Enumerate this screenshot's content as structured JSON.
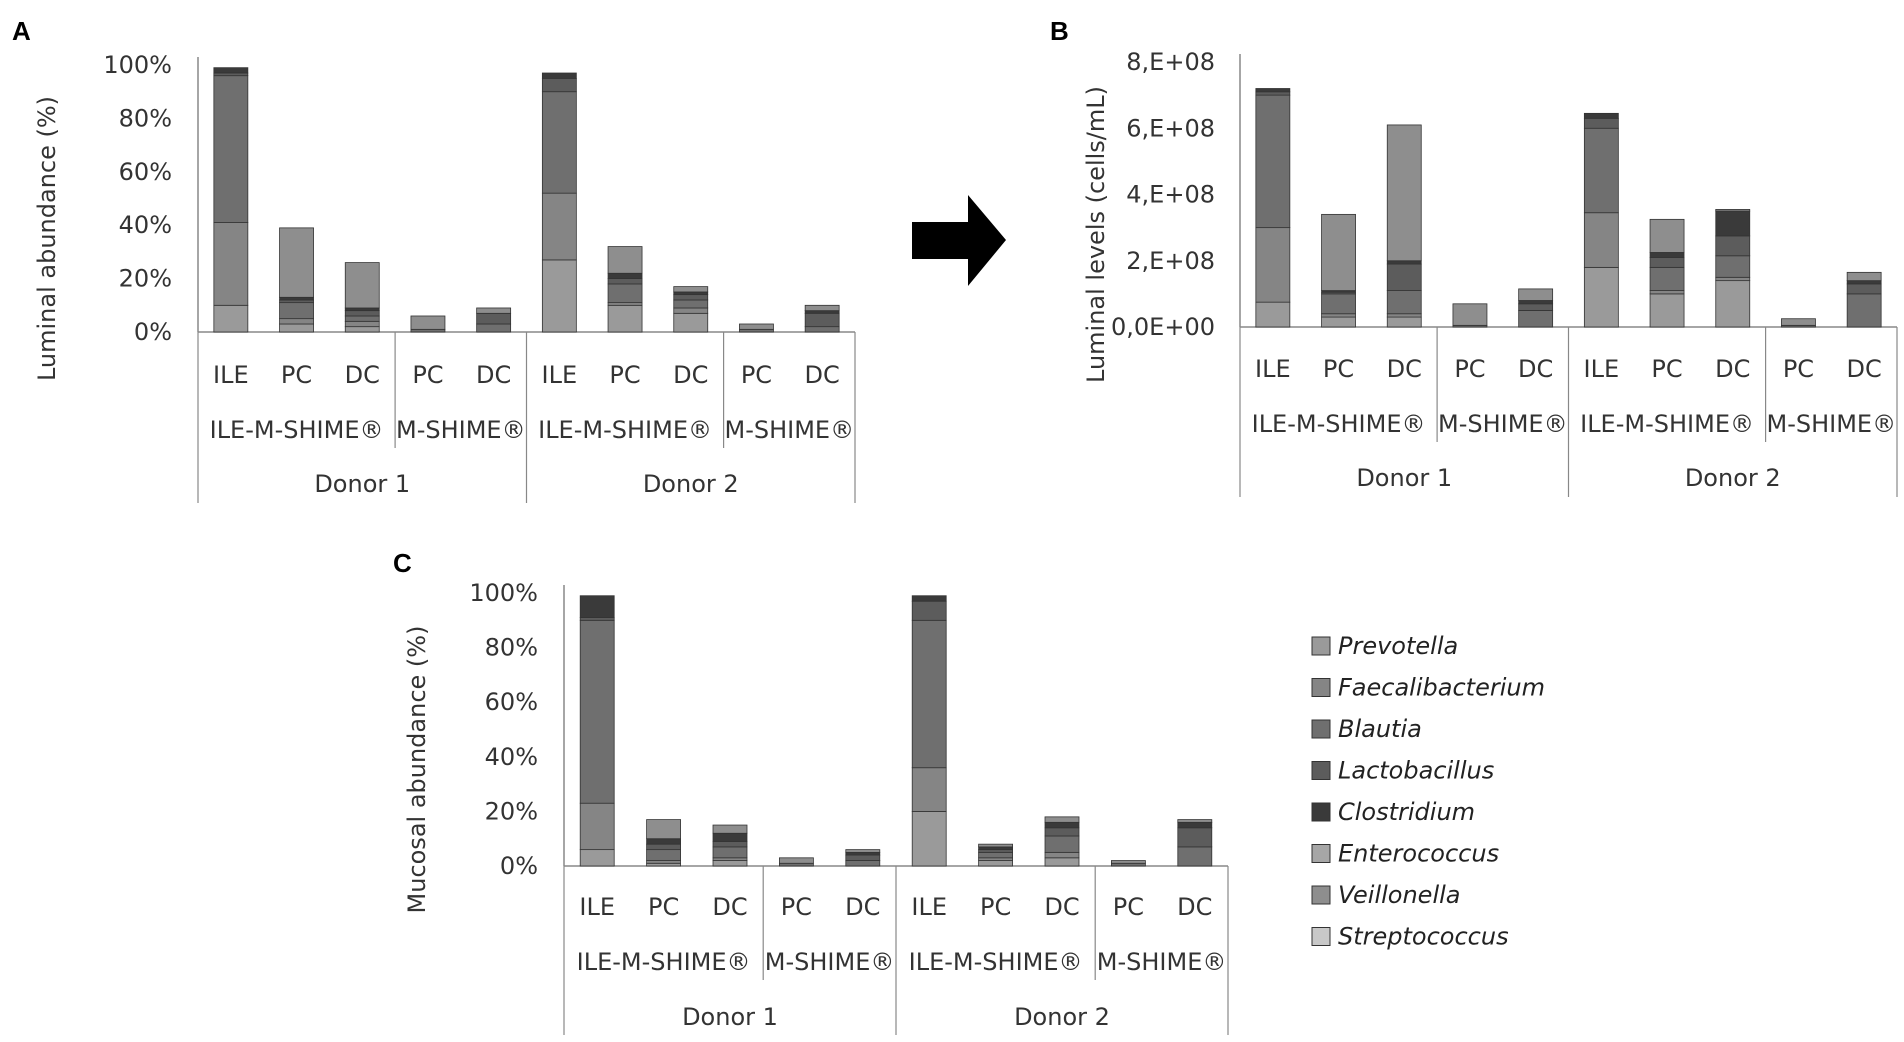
{
  "legend": {
    "entries": [
      {
        "name": "Prevotella",
        "color": "#9a9a9a"
      },
      {
        "name": "Faecalibacterium",
        "color": "#858585"
      },
      {
        "name": "Blautia",
        "color": "#6f6f6f"
      },
      {
        "name": "Lactobacillus",
        "color": "#5c5c5c"
      },
      {
        "name": "Clostridium",
        "color": "#3a3a3a"
      },
      {
        "name": "Enterococcus",
        "color": "#a6a6a6"
      },
      {
        "name": "Veillonella",
        "color": "#8e8e8e"
      },
      {
        "name": "Streptococcus",
        "color": "#c8c8c8"
      }
    ]
  },
  "chart_data": [
    {
      "panel": "A",
      "type": "bar",
      "stacked": true,
      "ylabel": "Luminal abundance (%)",
      "ylim": [
        0,
        100
      ],
      "yticks": [
        "0%",
        "20%",
        "40%",
        "60%",
        "80%",
        "100%"
      ],
      "groups": [
        {
          "donor": "Donor 1",
          "model": "ILE-M-SHIME®",
          "categories": [
            "ILE",
            "PC",
            "DC"
          ]
        },
        {
          "donor": "Donor 1",
          "model": "M-SHIME®",
          "categories": [
            "PC",
            "DC"
          ]
        },
        {
          "donor": "Donor 2",
          "model": "ILE-M-SHIME®",
          "categories": [
            "ILE",
            "PC",
            "DC"
          ]
        },
        {
          "donor": "Donor 2",
          "model": "M-SHIME®",
          "categories": [
            "PC",
            "DC"
          ]
        }
      ],
      "bars": [
        {
          "donor": "Donor 1",
          "model": "ILE-M-SHIME®",
          "category": "ILE",
          "segments": [
            10,
            31,
            55,
            1,
            2,
            0,
            0,
            0
          ]
        },
        {
          "donor": "Donor 1",
          "model": "ILE-M-SHIME®",
          "category": "PC",
          "segments": [
            3,
            2,
            6,
            1,
            1,
            0,
            26,
            0
          ]
        },
        {
          "donor": "Donor 1",
          "model": "ILE-M-SHIME®",
          "category": "DC",
          "segments": [
            2,
            2,
            2,
            2,
            1,
            0,
            17,
            0
          ]
        },
        {
          "donor": "Donor 1",
          "model": "M-SHIME®",
          "category": "PC",
          "segments": [
            0,
            0,
            1,
            0,
            0,
            0,
            5,
            0
          ]
        },
        {
          "donor": "Donor 1",
          "model": "M-SHIME®",
          "category": "DC",
          "segments": [
            0,
            0,
            3,
            4,
            0,
            0,
            2,
            0
          ]
        },
        {
          "donor": "Donor 2",
          "model": "ILE-M-SHIME®",
          "category": "ILE",
          "segments": [
            27,
            25,
            38,
            5,
            2,
            0,
            0,
            0
          ]
        },
        {
          "donor": "Donor 2",
          "model": "ILE-M-SHIME®",
          "category": "PC",
          "segments": [
            10,
            1,
            7,
            2,
            2,
            0,
            10,
            0
          ]
        },
        {
          "donor": "Donor 2",
          "model": "ILE-M-SHIME®",
          "category": "DC",
          "segments": [
            7,
            2,
            3,
            2,
            1,
            0,
            2,
            0
          ]
        },
        {
          "donor": "Donor 2",
          "model": "M-SHIME®",
          "category": "PC",
          "segments": [
            0,
            0,
            1,
            0,
            0,
            0,
            2,
            0
          ]
        },
        {
          "donor": "Donor 2",
          "model": "M-SHIME®",
          "category": "DC",
          "segments": [
            0,
            0,
            2,
            5,
            1,
            0,
            2,
            0
          ]
        }
      ]
    },
    {
      "panel": "B",
      "type": "bar",
      "stacked": true,
      "ylabel": "Luminal levels (cells/mL)",
      "ylim": [
        0,
        800000000
      ],
      "yticks": [
        "0,0E+00",
        "2,E+08",
        "4,E+08",
        "6,E+08",
        "8,E+08"
      ],
      "groups": [
        {
          "donor": "Donor 1",
          "model": "ILE-M-SHIME®",
          "categories": [
            "ILE",
            "PC",
            "DC"
          ]
        },
        {
          "donor": "Donor 1",
          "model": "M-SHIME®",
          "categories": [
            "PC",
            "DC"
          ]
        },
        {
          "donor": "Donor 2",
          "model": "ILE-M-SHIME®",
          "categories": [
            "ILE",
            "PC",
            "DC"
          ]
        },
        {
          "donor": "Donor 2",
          "model": "M-SHIME®",
          "categories": [
            "PC",
            "DC"
          ]
        }
      ],
      "bars": [
        {
          "donor": "Donor 1",
          "model": "ILE-M-SHIME®",
          "category": "ILE",
          "segments": [
            75000000,
            225000000,
            400000000,
            10000000,
            10000000,
            0,
            0,
            0
          ]
        },
        {
          "donor": "Donor 1",
          "model": "ILE-M-SHIME®",
          "category": "PC",
          "segments": [
            30000000,
            10000000,
            60000000,
            5000000,
            5000000,
            0,
            230000000,
            0
          ]
        },
        {
          "donor": "Donor 1",
          "model": "ILE-M-SHIME®",
          "category": "DC",
          "segments": [
            30000000,
            10000000,
            70000000,
            80000000,
            10000000,
            0,
            410000000,
            0
          ]
        },
        {
          "donor": "Donor 1",
          "model": "M-SHIME®",
          "category": "PC",
          "segments": [
            0,
            0,
            5000000,
            0,
            0,
            0,
            65000000,
            0
          ]
        },
        {
          "donor": "Donor 1",
          "model": "M-SHIME®",
          "category": "DC",
          "segments": [
            0,
            0,
            50000000,
            20000000,
            10000000,
            0,
            35000000,
            0
          ]
        },
        {
          "donor": "Donor 2",
          "model": "ILE-M-SHIME®",
          "category": "ILE",
          "segments": [
            180000000,
            165000000,
            255000000,
            30000000,
            15000000,
            0,
            0,
            0
          ]
        },
        {
          "donor": "Donor 2",
          "model": "ILE-M-SHIME®",
          "category": "PC",
          "segments": [
            100000000,
            10000000,
            70000000,
            30000000,
            15000000,
            0,
            100000000,
            0
          ]
        },
        {
          "donor": "Donor 2",
          "model": "ILE-M-SHIME®",
          "category": "DC",
          "segments": [
            140000000,
            10000000,
            65000000,
            60000000,
            75000000,
            0,
            5000000,
            0
          ]
        },
        {
          "donor": "Donor 2",
          "model": "M-SHIME®",
          "category": "PC",
          "segments": [
            0,
            0,
            5000000,
            0,
            0,
            0,
            20000000,
            0
          ]
        },
        {
          "donor": "Donor 2",
          "model": "M-SHIME®",
          "category": "DC",
          "segments": [
            0,
            0,
            100000000,
            30000000,
            10000000,
            0,
            25000000,
            0
          ]
        }
      ]
    },
    {
      "panel": "C",
      "type": "bar",
      "stacked": true,
      "ylabel": "Mucosal abundance (%)",
      "ylim": [
        0,
        100
      ],
      "yticks": [
        "0%",
        "20%",
        "40%",
        "60%",
        "80%",
        "100%"
      ],
      "groups": [
        {
          "donor": "Donor 1",
          "model": "ILE-M-SHIME®",
          "categories": [
            "ILE",
            "PC",
            "DC"
          ]
        },
        {
          "donor": "Donor 1",
          "model": "M-SHIME®",
          "categories": [
            "PC",
            "DC"
          ]
        },
        {
          "donor": "Donor 2",
          "model": "ILE-M-SHIME®",
          "categories": [
            "ILE",
            "PC",
            "DC"
          ]
        },
        {
          "donor": "Donor 2",
          "model": "M-SHIME®",
          "categories": [
            "PC",
            "DC"
          ]
        }
      ],
      "bars": [
        {
          "donor": "Donor 1",
          "model": "ILE-M-SHIME®",
          "category": "ILE",
          "segments": [
            6,
            17,
            67,
            1,
            8,
            0,
            0,
            0
          ]
        },
        {
          "donor": "Donor 1",
          "model": "ILE-M-SHIME®",
          "category": "PC",
          "segments": [
            1,
            1,
            4,
            2,
            2,
            0,
            7,
            0
          ]
        },
        {
          "donor": "Donor 1",
          "model": "ILE-M-SHIME®",
          "category": "DC",
          "segments": [
            2,
            1,
            4,
            2,
            3,
            0,
            3,
            0
          ]
        },
        {
          "donor": "Donor 1",
          "model": "M-SHIME®",
          "category": "PC",
          "segments": [
            0,
            0,
            1,
            0,
            0,
            0,
            2,
            0
          ]
        },
        {
          "donor": "Donor 1",
          "model": "M-SHIME®",
          "category": "DC",
          "segments": [
            0,
            0,
            2,
            2,
            1,
            0,
            1,
            0
          ]
        },
        {
          "donor": "Donor 2",
          "model": "ILE-M-SHIME®",
          "category": "ILE",
          "segments": [
            20,
            16,
            54,
            7,
            2,
            0,
            0,
            0
          ]
        },
        {
          "donor": "Donor 2",
          "model": "ILE-M-SHIME®",
          "category": "PC",
          "segments": [
            2,
            1,
            2,
            1,
            1,
            0,
            1,
            0
          ]
        },
        {
          "donor": "Donor 2",
          "model": "ILE-M-SHIME®",
          "category": "DC",
          "segments": [
            3,
            2,
            6,
            3,
            2,
            0,
            2,
            0
          ]
        },
        {
          "donor": "Donor 2",
          "model": "M-SHIME®",
          "category": "PC",
          "segments": [
            0,
            0,
            1,
            0,
            0,
            0,
            1,
            0
          ]
        },
        {
          "donor": "Donor 2",
          "model": "M-SHIME®",
          "category": "DC",
          "segments": [
            0,
            0,
            7,
            7,
            2,
            0,
            1,
            0
          ]
        }
      ]
    }
  ],
  "panel_labels": [
    "A",
    "B",
    "C"
  ]
}
